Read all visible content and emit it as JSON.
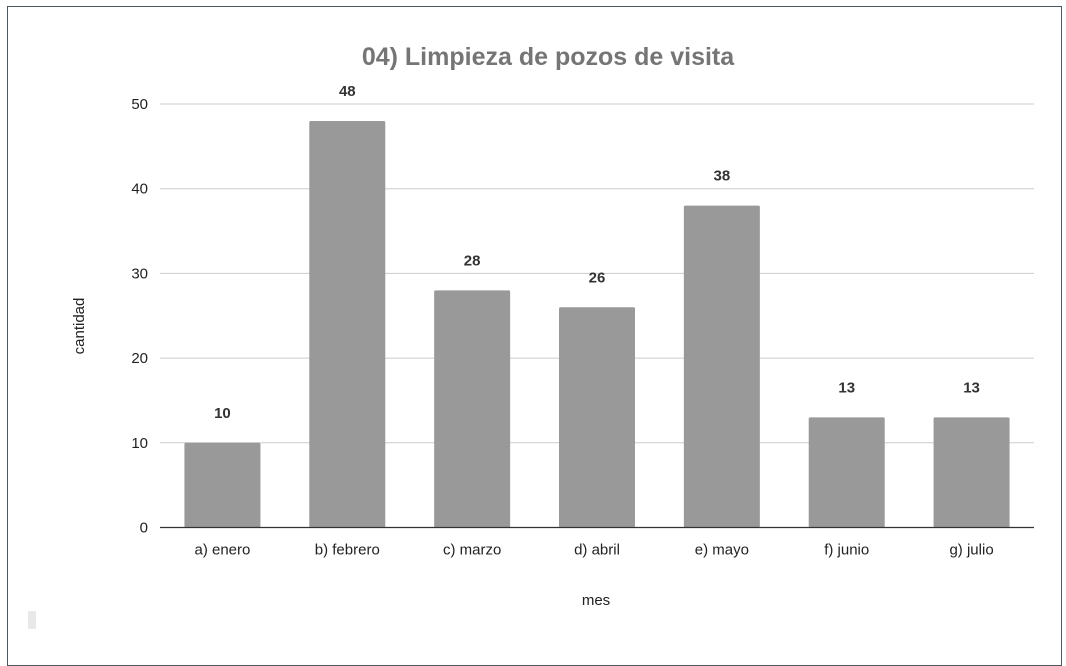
{
  "chart_data": {
    "type": "bar",
    "title": "04) Limpieza de pozos de visita",
    "xlabel": "mes",
    "ylabel": "cantidad",
    "categories": [
      "a) enero",
      "b) febrero",
      "c) marzo",
      "d) abril",
      "e) mayo",
      "f) junio",
      "g) julio"
    ],
    "values": [
      10,
      48,
      28,
      26,
      38,
      13,
      13
    ],
    "data_labels": [
      "10",
      "48",
      "28",
      "26",
      "38",
      "13",
      "13"
    ],
    "ylim": [
      0,
      50
    ],
    "yticks": [
      "0",
      "10",
      "20",
      "30",
      "40",
      "50"
    ],
    "grid": true,
    "legend": "none",
    "bar_color": "#999999",
    "title_color": "#757575"
  }
}
